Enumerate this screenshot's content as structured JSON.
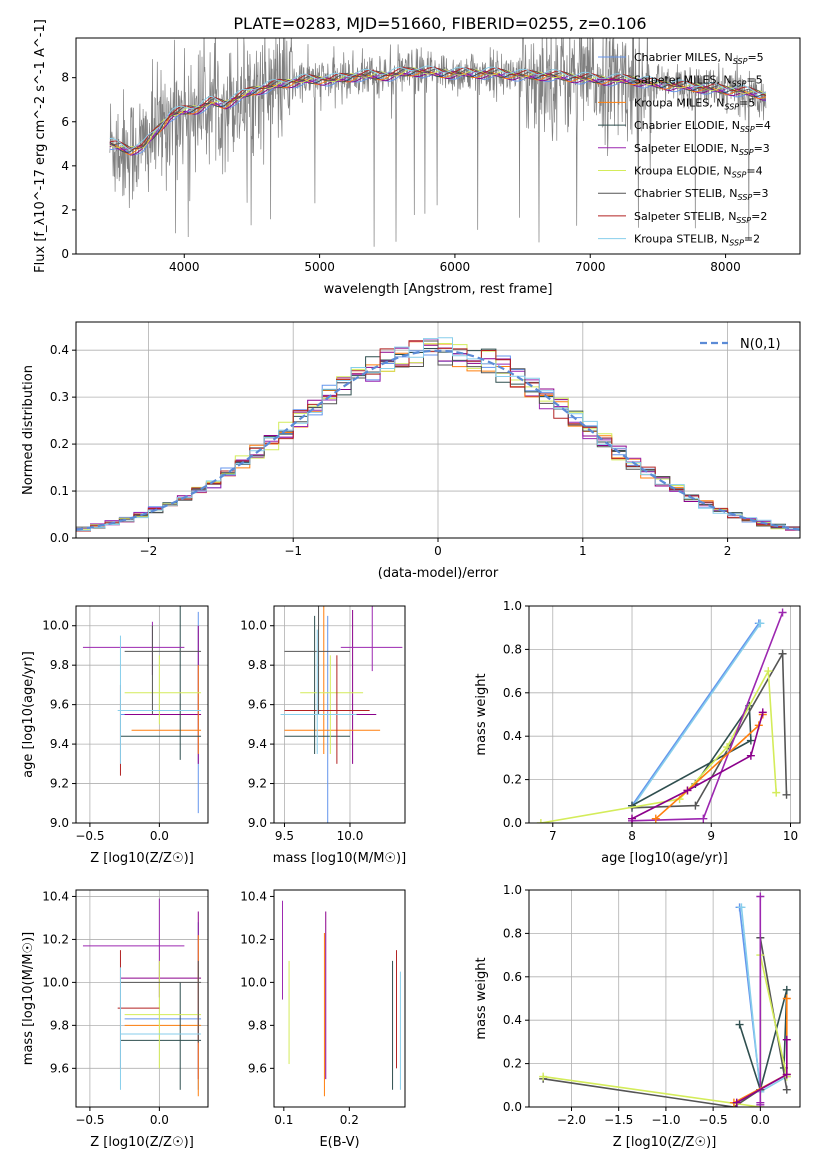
{
  "figure_title": "PLATE=0283, MJD=51660, FIBERID=0255, z=0.106",
  "colors": {
    "data": "#808080",
    "series": [
      "#6495ed",
      "#8b008b",
      "#ff7f0e",
      "#2f4f4f",
      "#9c27b0",
      "#d4ec5a",
      "#555555",
      "#b22222",
      "#87ceeb"
    ],
    "gauss": "#5b8bd6"
  },
  "chart_data": [
    {
      "id": "spectrum",
      "type": "line",
      "xlabel": "wavelength [Angstrom, rest frame]",
      "ylabel": "Flux [f_λ10^-17 erg cm^-2 s^-1 A^-1]",
      "xlim": [
        3200,
        8550
      ],
      "ylim": [
        0,
        9.8
      ],
      "xticks": [
        4000,
        5000,
        6000,
        7000,
        8000
      ],
      "yticks": [
        0,
        2,
        4,
        6,
        8
      ],
      "grid": false,
      "legend_position": "top-right",
      "continuum": {
        "x": [
          3450,
          3600,
          3700,
          3800,
          3900,
          4000,
          4100,
          4200,
          4300,
          4500,
          4700,
          4900,
          5100,
          5300,
          5500,
          5700,
          5900,
          6100,
          6300,
          6500,
          6700,
          6900,
          7100,
          7300,
          7500,
          7700,
          7900,
          8100,
          8300
        ],
        "y": [
          5.0,
          4.7,
          4.9,
          5.6,
          6.3,
          6.5,
          6.6,
          6.9,
          6.8,
          7.4,
          7.7,
          7.9,
          7.9,
          8.1,
          8.1,
          8.3,
          8.2,
          8.2,
          8.2,
          8.1,
          8.1,
          8.0,
          7.9,
          7.9,
          7.7,
          7.6,
          7.5,
          7.4,
          7.2
        ]
      },
      "series": [
        {
          "name": "Chabrier MILES, N_SSP=5"
        },
        {
          "name": "Salpeter MILES, N_SSP=5"
        },
        {
          "name": "Kroupa MILES, N_SSP=5"
        },
        {
          "name": "Chabrier ELODIE, N_SSP=4"
        },
        {
          "name": "Salpeter ELODIE, N_SSP=3"
        },
        {
          "name": "Kroupa ELODIE, N_SSP=4"
        },
        {
          "name": "Chabrier STELIB, N_SSP=3"
        },
        {
          "name": "Salpeter STELIB, N_SSP=2"
        },
        {
          "name": "Kroupa STELIB, N_SSP=2"
        }
      ]
    },
    {
      "id": "residuals",
      "type": "line",
      "xlabel": "(data-model)/error",
      "ylabel": "Normed distribution",
      "xlim": [
        -2.5,
        2.5
      ],
      "ylim": [
        0,
        0.46
      ],
      "xticks": [
        -2,
        -1,
        0,
        1,
        2
      ],
      "yticks": [
        0.0,
        0.1,
        0.2,
        0.3,
        0.4
      ],
      "grid": true,
      "legend_position": "top-right",
      "legend": "N(0,1)",
      "bin_width": 0.1
    },
    {
      "id": "age_vs_Z",
      "type": "scatter",
      "xlabel": "Z [log10(Z/Z☉)]",
      "ylabel": "age [log10(age/yr)]",
      "xlim": [
        -0.6,
        0.35
      ],
      "ylim": [
        9.0,
        10.1
      ],
      "xticks": [
        -0.5,
        0.0
      ],
      "yticks": [
        9.0,
        9.2,
        9.4,
        9.6,
        9.8,
        10.0
      ],
      "grid": true,
      "points": [
        {
          "s": 0,
          "x": 0.28,
          "y": 9.55,
          "xl": -0.28,
          "xh": 0.3,
          "yl": 9.05,
          "yh": 10.07
        },
        {
          "s": 1,
          "x": 0.28,
          "y": 9.55,
          "xl": -0.25,
          "xh": 0.3,
          "yl": 9.3,
          "yh": 10.0
        },
        {
          "s": 2,
          "x": 0.28,
          "y": 9.47,
          "xl": -0.2,
          "xh": 0.3,
          "yl": 9.35,
          "yh": 9.8
        },
        {
          "s": 3,
          "x": 0.15,
          "y": 9.44,
          "xl": -0.28,
          "xh": 0.3,
          "yl": 9.32,
          "yh": 10.1
        },
        {
          "s": 4,
          "x": -0.05,
          "y": 9.89,
          "xl": -0.55,
          "xh": 0.18,
          "yl": 9.75,
          "yh": 10.02
        },
        {
          "s": 5,
          "x": 0.0,
          "y": 9.66,
          "xl": -0.25,
          "xh": 0.3,
          "yl": 9.5,
          "yh": 9.85
        },
        {
          "s": 6,
          "x": -0.05,
          "y": 9.87,
          "xl": -0.25,
          "xh": 0.3,
          "yl": 9.55,
          "yh": 10.0
        },
        {
          "s": 7,
          "x": -0.28,
          "y": 9.57,
          "xl": -0.28,
          "xh": 0.28,
          "yl": 9.24,
          "yh": 9.7
        },
        {
          "s": 8,
          "x": -0.28,
          "y": 9.57,
          "xl": -0.3,
          "xh": 0.3,
          "yl": 9.3,
          "yh": 9.95
        }
      ]
    },
    {
      "id": "age_vs_mass",
      "type": "scatter",
      "xlabel": "mass [log10(M/M☉)]",
      "ylabel": "",
      "xlim": [
        9.42,
        10.42
      ],
      "ylim": [
        9.0,
        10.1
      ],
      "xticks": [
        9.5,
        10.0
      ],
      "yticks": [
        9.0,
        9.2,
        9.4,
        9.6,
        9.8,
        10.0
      ],
      "grid": true,
      "points": [
        {
          "s": 0,
          "x": 9.83,
          "y": 9.55,
          "xl": 9.5,
          "xh": 10.2,
          "yl": 8.98,
          "yh": 10.05
        },
        {
          "s": 1,
          "x": 10.02,
          "y": 9.55,
          "xl": 9.6,
          "xh": 10.2,
          "yl": 9.3,
          "yh": 10.08
        },
        {
          "s": 2,
          "x": 9.8,
          "y": 9.47,
          "xl": 9.5,
          "xh": 10.23,
          "yl": 9.35,
          "yh": 10.1
        },
        {
          "s": 3,
          "x": 9.73,
          "y": 9.44,
          "xl": 9.5,
          "xh": 10.0,
          "yl": 9.35,
          "yh": 10.05
        },
        {
          "s": 4,
          "x": 10.17,
          "y": 9.89,
          "xl": 9.93,
          "xh": 10.4,
          "yl": 9.77,
          "yh": 10.1
        },
        {
          "s": 5,
          "x": 9.85,
          "y": 9.66,
          "xl": 9.62,
          "xh": 10.1,
          "yl": 9.35,
          "yh": 9.85
        },
        {
          "s": 6,
          "x": 9.76,
          "y": 9.87,
          "xl": 9.5,
          "xh": 10.0,
          "yl": 9.55,
          "yh": 10.1
        },
        {
          "s": 7,
          "x": 9.9,
          "y": 9.57,
          "xl": 9.5,
          "xh": 10.15,
          "yl": 9.3,
          "yh": 9.85
        },
        {
          "s": 8,
          "x": 9.75,
          "y": 9.55,
          "xl": 9.47,
          "xh": 10.05,
          "yl": 9.35,
          "yh": 9.98
        }
      ]
    },
    {
      "id": "weight_vs_age",
      "type": "line",
      "xlabel": "age [log10(age/yr)]",
      "ylabel": "mass weight",
      "xlim": [
        6.7,
        10.12
      ],
      "ylim": [
        0.0,
        1.0
      ],
      "xticks": [
        7,
        8,
        9,
        10
      ],
      "yticks": [
        0.0,
        0.2,
        0.4,
        0.6,
        0.8,
        1.0
      ],
      "grid": true,
      "series": [
        {
          "s": 0,
          "x": [
            8.0,
            9.6
          ],
          "y": [
            0.08,
            0.92
          ]
        },
        {
          "s": 8,
          "x": [
            8.0,
            9.62
          ],
          "y": [
            0.07,
            0.92
          ]
        },
        {
          "s": 3,
          "x": [
            8.0,
            9.5,
            9.48,
            8.8
          ],
          "y": [
            0.08,
            0.38,
            0.54,
            0.18
          ]
        },
        {
          "s": 6,
          "x": [
            8.0,
            8.8,
            9.9,
            9.95
          ],
          "y": [
            0.07,
            0.08,
            0.78,
            0.13
          ]
        },
        {
          "s": 5,
          "x": [
            6.85,
            8.6,
            9.2,
            9.72,
            9.82
          ],
          "y": [
            0.0,
            0.11,
            0.35,
            0.7,
            0.14
          ]
        },
        {
          "s": 4,
          "x": [
            8.0,
            8.9,
            9.9
          ],
          "y": [
            0.01,
            0.02,
            0.97
          ]
        },
        {
          "s": 2,
          "x": [
            8.3,
            8.7,
            9.6,
            9.65
          ],
          "y": [
            0.02,
            0.15,
            0.45,
            0.5
          ]
        },
        {
          "s": 1,
          "x": [
            8.0,
            8.7,
            9.5,
            9.65
          ],
          "y": [
            0.02,
            0.15,
            0.31,
            0.51
          ]
        }
      ]
    },
    {
      "id": "mass_vs_Z",
      "type": "scatter",
      "xlabel": "Z [log10(Z/Z☉)]",
      "ylabel": "mass [log10(M/M☉)]",
      "xlim": [
        -0.6,
        0.35
      ],
      "ylim": [
        9.42,
        10.43
      ],
      "xticks": [
        -0.5,
        0.0
      ],
      "yticks": [
        9.6,
        9.8,
        10.0,
        10.2,
        10.4
      ],
      "grid": true,
      "points": [
        {
          "s": 0,
          "x": 0.28,
          "y": 9.83,
          "xl": -0.25,
          "xh": 0.3,
          "yl": 9.5,
          "yh": 10.28
        },
        {
          "s": 1,
          "x": 0.28,
          "y": 10.02,
          "xl": -0.28,
          "xh": 0.3,
          "yl": 9.55,
          "yh": 10.33
        },
        {
          "s": 2,
          "x": 0.28,
          "y": 9.8,
          "xl": -0.25,
          "xh": 0.3,
          "yl": 9.47,
          "yh": 10.22
        },
        {
          "s": 3,
          "x": 0.15,
          "y": 9.73,
          "xl": -0.28,
          "xh": 0.3,
          "yl": 9.5,
          "yh": 10.0
        },
        {
          "s": 4,
          "x": 0.0,
          "y": 10.17,
          "xl": -0.55,
          "xh": 0.18,
          "yl": 9.93,
          "yh": 10.39
        },
        {
          "s": 5,
          "x": 0.0,
          "y": 9.85,
          "xl": -0.25,
          "xh": 0.3,
          "yl": 9.6,
          "yh": 10.1
        },
        {
          "s": 6,
          "x": 0.28,
          "y": 10.0,
          "xl": -0.28,
          "xh": 0.3,
          "yl": 9.72,
          "yh": 10.1
        },
        {
          "s": 7,
          "x": -0.28,
          "y": 9.88,
          "xl": -0.3,
          "xh": 0.0,
          "yl": 9.6,
          "yh": 10.15
        },
        {
          "s": 8,
          "x": -0.28,
          "y": 9.76,
          "xl": -0.28,
          "xh": 0.3,
          "yl": 9.5,
          "yh": 10.07
        }
      ]
    },
    {
      "id": "mass_vs_ebv",
      "type": "scatter",
      "xlabel": "E(B-V)",
      "ylabel": "",
      "xlim": [
        0.085,
        0.285
      ],
      "ylim": [
        9.42,
        10.43
      ],
      "xticks": [
        0.1,
        0.2
      ],
      "yticks": [
        9.6,
        9.8,
        10.0,
        10.2,
        10.4
      ],
      "grid": false,
      "points": [
        {
          "s": 4,
          "x": 0.098,
          "y": 10.17,
          "yl": 9.92,
          "yh": 10.38
        },
        {
          "s": 5,
          "x": 0.108,
          "y": 9.85,
          "yl": 9.62,
          "yh": 10.1
        },
        {
          "s": 2,
          "x": 0.162,
          "y": 9.8,
          "yl": 9.47,
          "yh": 10.23
        },
        {
          "s": 1,
          "x": 0.164,
          "y": 10.02,
          "yl": 9.55,
          "yh": 10.33
        },
        {
          "s": 3,
          "x": 0.266,
          "y": 9.73,
          "yl": 9.5,
          "yh": 10.1
        },
        {
          "s": 7,
          "x": 0.272,
          "y": 9.88,
          "yl": 9.6,
          "yh": 10.15
        },
        {
          "s": 8,
          "x": 0.278,
          "y": 9.76,
          "yl": 9.5,
          "yh": 10.05
        }
      ]
    },
    {
      "id": "weight_vs_Z",
      "type": "line",
      "xlabel": "Z [log10(Z/Z☉)]",
      "ylabel": "mass weight",
      "xlim": [
        -2.45,
        0.42
      ],
      "ylim": [
        0.0,
        1.0
      ],
      "xticks": [
        -2.0,
        -1.5,
        -1.0,
        -0.5,
        0.0
      ],
      "yticks": [
        0.0,
        0.2,
        0.4,
        0.6,
        0.8,
        1.0
      ],
      "grid": true,
      "series": [
        {
          "s": 0,
          "x": [
            -0.22,
            0.0,
            0.0
          ],
          "y": [
            0.92,
            0.08,
            0.08
          ]
        },
        {
          "s": 8,
          "x": [
            -0.2,
            0.0,
            0.28
          ],
          "y": [
            0.92,
            0.07,
            0.14
          ]
        },
        {
          "s": 3,
          "x": [
            -0.22,
            0.0,
            0.28,
            0.25
          ],
          "y": [
            0.38,
            0.08,
            0.54,
            0.18
          ]
        },
        {
          "s": 6,
          "x": [
            -2.3,
            -0.28,
            0.0,
            0.0,
            0.28
          ],
          "y": [
            0.13,
            0.0,
            0.08,
            0.78,
            0.08
          ]
        },
        {
          "s": 5,
          "x": [
            -2.3,
            0.0,
            0.0,
            0.28
          ],
          "y": [
            0.14,
            0.0,
            0.7,
            0.14
          ]
        },
        {
          "s": 4,
          "x": [
            0.0,
            0.0,
            0.0
          ],
          "y": [
            0.01,
            0.97,
            0.02
          ]
        },
        {
          "s": 2,
          "x": [
            -0.28,
            0.28,
            0.28
          ],
          "y": [
            0.02,
            0.15,
            0.5
          ]
        },
        {
          "s": 1,
          "x": [
            -0.25,
            0.28,
            0.28
          ],
          "y": [
            0.02,
            0.15,
            0.31
          ]
        }
      ]
    }
  ]
}
